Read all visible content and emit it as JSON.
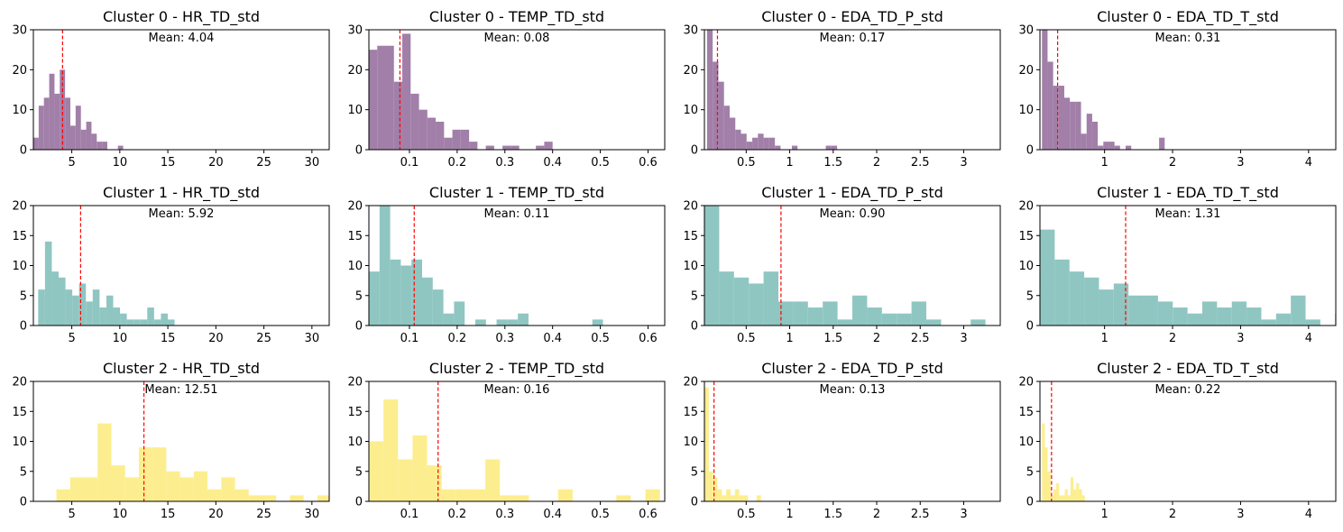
{
  "chart_data": [
    {
      "type": "bar",
      "title": "Cluster 0 - HR_TD_std",
      "series_color": "#a17fa8",
      "mean_label": "Mean: 4.04",
      "mean": 4.04,
      "xlim": [
        1,
        31.8
      ],
      "ylim": [
        0,
        30
      ],
      "xticks": [
        5,
        10,
        15,
        20,
        25,
        30
      ],
      "yticks": [
        0,
        10,
        20,
        30
      ],
      "bins": {
        "start": 1.0,
        "width": 0.55,
        "values": [
          3,
          11,
          13,
          19,
          14,
          20,
          13,
          6,
          11,
          5,
          7,
          4,
          2,
          2,
          0,
          0,
          1
        ]
      }
    },
    {
      "type": "bar",
      "title": "Cluster 0 - TEMP_TD_std",
      "series_color": "#a17fa8",
      "mean_label": "Mean: 0.08",
      "mean": 0.08,
      "xlim": [
        0.015,
        0.635
      ],
      "ylim": [
        0,
        30
      ],
      "xticks": [
        0.1,
        0.2,
        0.3,
        0.4,
        0.5,
        0.6
      ],
      "yticks": [
        0,
        10,
        20,
        30
      ],
      "bins": {
        "start": 0.015,
        "width": 0.0175,
        "values": [
          25,
          26,
          26,
          17,
          29,
          14,
          10,
          8,
          7,
          3,
          5,
          5,
          2,
          0,
          1,
          0,
          1,
          1,
          0,
          0,
          1,
          2
        ]
      }
    },
    {
      "type": "bar",
      "title": "Cluster 0 - EDA_TD_P_std",
      "series_color": "#a17fa8",
      "mean_label": "Mean: 0.17",
      "mean": 0.17,
      "xlim": [
        0.02,
        3.42
      ],
      "ylim": [
        0,
        30
      ],
      "xticks": [
        0.5,
        1.0,
        1.5,
        2.0,
        2.5,
        3.0
      ],
      "yticks": [
        0,
        10,
        20,
        30
      ],
      "bins": {
        "start": 0.05,
        "width": 0.065,
        "values": [
          31,
          22,
          17,
          11,
          8,
          5,
          4,
          2,
          3,
          4,
          3,
          3,
          1,
          0,
          0,
          1,
          0,
          0,
          0,
          0,
          0,
          1,
          1
        ]
      }
    },
    {
      "type": "bar",
      "title": "Cluster 0 - EDA_TD_T_std",
      "series_color": "#a17fa8",
      "mean_label": "Mean: 0.31",
      "mean": 0.31,
      "xlim": [
        0.05,
        4.4
      ],
      "ylim": [
        0,
        30
      ],
      "xticks": [
        1,
        2,
        3,
        4
      ],
      "yticks": [
        0,
        10,
        20,
        30
      ],
      "bins": {
        "start": 0.08,
        "width": 0.082,
        "values": [
          30,
          22,
          16,
          16,
          13,
          12,
          12,
          4,
          9,
          7,
          1,
          2,
          2,
          1,
          0,
          1,
          0,
          0,
          0,
          0,
          0,
          3
        ]
      }
    },
    {
      "type": "bar",
      "title": "Cluster 1 - HR_TD_std",
      "series_color": "#8fc6c2",
      "mean_label": "Mean: 5.92",
      "mean": 5.92,
      "xlim": [
        1,
        31.8
      ],
      "ylim": [
        0,
        20
      ],
      "xticks": [
        5,
        10,
        15,
        20,
        25,
        30
      ],
      "yticks": [
        0,
        5,
        10,
        15,
        20
      ],
      "bins": {
        "start": 1.5,
        "width": 0.71,
        "values": [
          6,
          14,
          9,
          8,
          6,
          5,
          7,
          4,
          6,
          3,
          5,
          3,
          2,
          1,
          1,
          1,
          3,
          1,
          2,
          1
        ]
      }
    },
    {
      "type": "bar",
      "title": "Cluster 1 - TEMP_TD_std",
      "series_color": "#8fc6c2",
      "mean_label": "Mean: 0.11",
      "mean": 0.11,
      "xlim": [
        0.015,
        0.635
      ],
      "ylim": [
        0,
        20
      ],
      "xticks": [
        0.1,
        0.2,
        0.3,
        0.4,
        0.5,
        0.6
      ],
      "yticks": [
        0,
        5,
        10,
        15,
        20
      ],
      "bins": {
        "start": 0.015,
        "width": 0.0223,
        "values": [
          9,
          21,
          11,
          10,
          11,
          8,
          6,
          2,
          4,
          0,
          1,
          0,
          1,
          1,
          2,
          0,
          0,
          0,
          0,
          0,
          0,
          1
        ]
      }
    },
    {
      "type": "bar",
      "title": "Cluster 1 - EDA_TD_P_std",
      "series_color": "#8fc6c2",
      "mean_label": "Mean: 0.90",
      "mean": 0.9,
      "xlim": [
        0.02,
        3.42
      ],
      "ylim": [
        0,
        20
      ],
      "xticks": [
        0.5,
        1.0,
        1.5,
        2.0,
        2.5,
        3.0
      ],
      "yticks": [
        0,
        5,
        10,
        15,
        20
      ],
      "bins": {
        "start": 0.02,
        "width": 0.17,
        "values": [
          21,
          9,
          8,
          7,
          9,
          4,
          4,
          3,
          4,
          1,
          5,
          3,
          2,
          2,
          4,
          1,
          0,
          0,
          1
        ]
      }
    },
    {
      "type": "bar",
      "title": "Cluster 1 - EDA_TD_T_std",
      "series_color": "#8fc6c2",
      "mean_label": "Mean: 1.31",
      "mean": 1.31,
      "xlim": [
        0.05,
        4.4
      ],
      "ylim": [
        0,
        20
      ],
      "xticks": [
        1,
        2,
        3,
        4
      ],
      "yticks": [
        0,
        5,
        10,
        15,
        20
      ],
      "bins": {
        "start": 0.05,
        "width": 0.217,
        "values": [
          16,
          11,
          9,
          8,
          6,
          7,
          5,
          5,
          4,
          3,
          2,
          4,
          3,
          4,
          3,
          1,
          2,
          5,
          1,
          0,
          2
        ]
      }
    },
    {
      "type": "bar",
      "title": "Cluster 2 - HR_TD_std",
      "series_color": "#fcee8e",
      "mean_label": "Mean: 12.51",
      "mean": 12.51,
      "xlim": [
        1,
        31.8
      ],
      "ylim": [
        0,
        20
      ],
      "xticks": [
        5,
        10,
        15,
        20,
        25,
        30
      ],
      "yticks": [
        0,
        5,
        10,
        15,
        20
      ],
      "bins": {
        "start": 3.4,
        "width": 1.43,
        "values": [
          2,
          4,
          4,
          13,
          6,
          4,
          9,
          9,
          5,
          4,
          5,
          2,
          4,
          2,
          1,
          1,
          0,
          1,
          0,
          1
        ]
      }
    },
    {
      "type": "bar",
      "title": "Cluster 2 - TEMP_TD_std",
      "series_color": "#fcee8e",
      "mean_label": "Mean: 0.16",
      "mean": 0.16,
      "xlim": [
        0.015,
        0.635
      ],
      "ylim": [
        0,
        20
      ],
      "xticks": [
        0.1,
        0.2,
        0.3,
        0.4,
        0.5,
        0.6
      ],
      "yticks": [
        0,
        5,
        10,
        15,
        20
      ],
      "bins": {
        "start": 0.015,
        "width": 0.0305,
        "values": [
          10,
          17,
          7,
          11,
          6,
          2,
          2,
          2,
          7,
          1,
          1,
          0,
          0,
          2,
          0,
          0,
          0,
          1,
          0,
          2
        ]
      }
    },
    {
      "type": "bar",
      "title": "Cluster 2 - EDA_TD_P_std",
      "series_color": "#fcee8e",
      "mean_label": "Mean: 0.13",
      "mean": 0.13,
      "xlim": [
        0.02,
        3.42
      ],
      "ylim": [
        0,
        20
      ],
      "xticks": [
        0.5,
        1.0,
        1.5,
        2.0,
        2.5,
        3.0
      ],
      "yticks": [
        0,
        5,
        10,
        15,
        20
      ],
      "bins": {
        "start": 0.02,
        "width": 0.05,
        "values": [
          19,
          5,
          4,
          2,
          1,
          2,
          1,
          2,
          1,
          1,
          0,
          0,
          1
        ]
      }
    },
    {
      "type": "bar",
      "title": "Cluster 2 - EDA_TD_T_std",
      "series_color": "#fcee8e",
      "mean_label": "Mean: 0.22",
      "mean": 0.22,
      "xlim": [
        0.05,
        4.4
      ],
      "ylim": [
        0,
        20
      ],
      "xticks": [
        1,
        2,
        3,
        4
      ],
      "yticks": [
        0,
        5,
        10,
        15,
        20
      ],
      "bins": {
        "start": 0.08,
        "width": 0.042,
        "values": [
          13,
          9,
          5,
          1,
          2,
          3,
          1,
          1,
          2,
          1,
          4,
          2,
          3,
          2,
          1
        ]
      }
    }
  ],
  "colors": {
    "mean_line": "#ff0000",
    "axes": "#000000"
  }
}
